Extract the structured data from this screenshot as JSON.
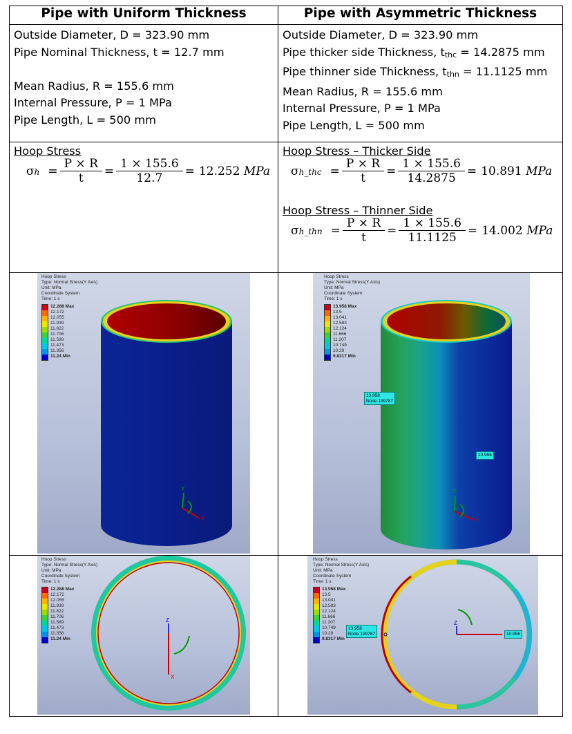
{
  "headers": {
    "left": "Pipe with Uniform Thickness",
    "right": "Pipe with Asymmetric Thickness"
  },
  "uniform_params": [
    "Outside Diameter, D = 323.90 mm",
    "Pipe Nominal Thickness, t = 12.7 mm",
    "Mean Radius, R = 155.6 mm",
    "Internal Pressure, P = 1 MPa",
    "Pipe Length, L = 500 mm"
  ],
  "asym_params": {
    "od": "Outside Diameter, D = 323.90 mm",
    "thick_prefix": "Pipe thicker side Thickness, t",
    "thick_sub": "thc",
    "thick_value": " = 14.2875 mm",
    "thin_prefix": "Pipe thinner side Thickness, t",
    "thin_sub": "thn",
    "thin_value": " = 11.1125 mm",
    "mean_radius": "Mean Radius, R = 155.6 mm",
    "pressure": "Internal Pressure, P = 1 MPa",
    "length": "Pipe Length, L = 500 mm"
  },
  "uniform_stress": {
    "title": "Hoop Stress",
    "sigma": "σ",
    "sub": "h",
    "num1": "P × R",
    "den1": "t",
    "num2": "1 × 155.6",
    "den2": "12.7",
    "result": "12.252",
    "unit": "MPa"
  },
  "asym_stress_thick": {
    "title": "Hoop Stress – Thicker Side",
    "sigma": "σ",
    "sub": "h_thc",
    "num1": "P × R",
    "den1": "t",
    "num2": "1 × 155.6",
    "den2": "14.2875",
    "result": "10.891",
    "unit": "MPa"
  },
  "asym_stress_thin": {
    "title": "Hoop Stress – Thinner Side",
    "sigma": "σ",
    "sub": "h_thn",
    "num1": "P × R",
    "den1": "t",
    "num2": "1 × 155.6",
    "den2": "11.1125",
    "result": "14.002",
    "unit": "MPa"
  },
  "legend_header": [
    "Hoop Stress",
    "Type: Normal Stress(Y Axis)",
    "Unit: MPa",
    "Coordinate System",
    "Time: 1 s"
  ],
  "legend_uniform": [
    "12.288 Max",
    "12.172",
    "12.055",
    "11.939",
    "11.822",
    "11.706",
    "11.589",
    "11.473",
    "11.356",
    "11.24 Min"
  ],
  "legend_asym": [
    "13.958 Max",
    "13.5",
    "13.041",
    "12.583",
    "12.124",
    "11.666",
    "11.207",
    "10.749",
    "10.29",
    "9.8317 Min"
  ],
  "probe_max": {
    "value": "13.958",
    "node": "Node 139787"
  },
  "probe_min": {
    "value": "10.956"
  },
  "axis_labels": {
    "x": "X",
    "y": "Y",
    "z": "Z"
  },
  "colors": {
    "scale": [
      "#c8001a",
      "#ff6a00",
      "#ffb400",
      "#e8e800",
      "#9cdc00",
      "#3cd23c",
      "#00d7a0",
      "#00c8e6",
      "#0096e6",
      "#0000c8"
    ],
    "pipe_blue": "#0a1f8c",
    "pipe_red": "#a00000",
    "probe": "#2fe7e2"
  }
}
